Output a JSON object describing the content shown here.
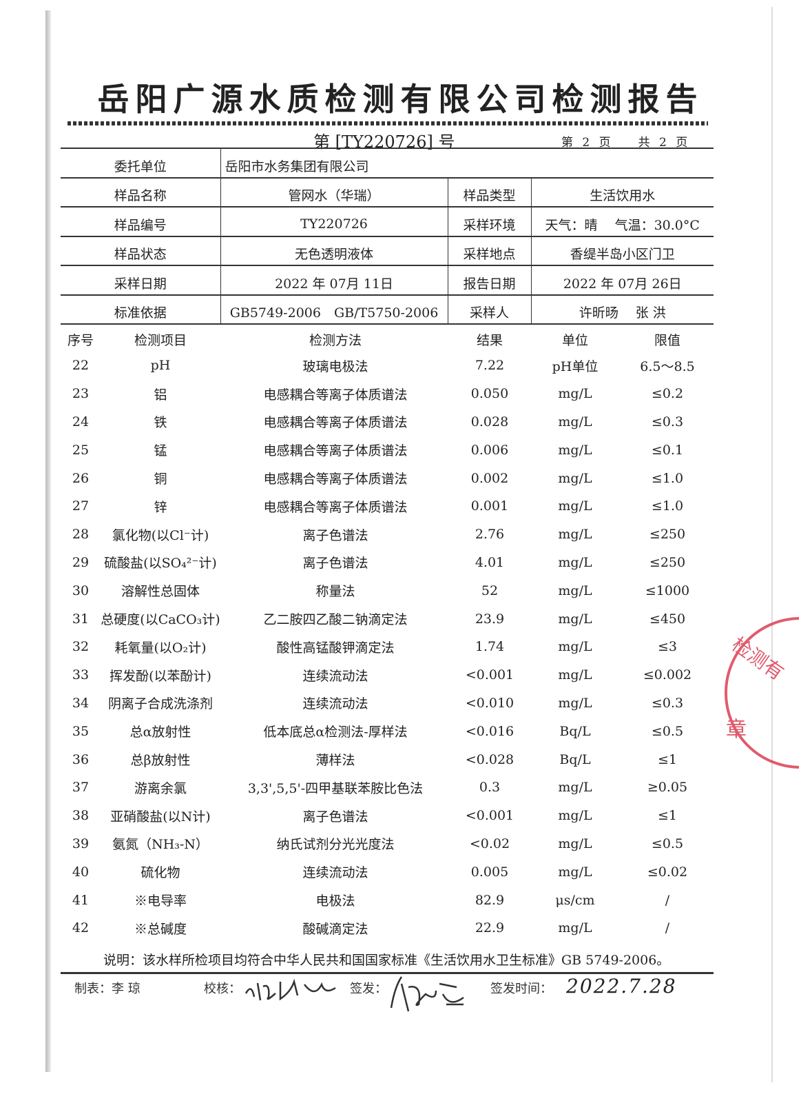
{
  "title": "岳阳广源水质检测有限公司检测报告",
  "report_no": "第 [TY220726] 号",
  "page_current": "第 2 页",
  "page_total": "共 2 页",
  "info": [
    {
      "label": "委托单位",
      "value": "岳阳市水务集团有限公司"
    },
    {
      "label": "样品名称",
      "value": "管网水（华瑞）",
      "label2": "样品类型",
      "value2": "生活饮用水"
    },
    {
      "label": "样品编号",
      "value": "TY220726",
      "label2": "采样环境",
      "value2": "天气：晴　 气温：30.0°C"
    },
    {
      "label": "样品状态",
      "value": "无色透明液体",
      "label2": "采样地点",
      "value2": "香缇半岛小区门卫"
    },
    {
      "label": "采样日期",
      "value": "2022 年 07月 11日",
      "label2": "报告日期",
      "value2": "2022 年 07月 26日"
    },
    {
      "label": "标准依据",
      "value": "GB5749-2006　GB/T5750-2006",
      "label2": "采样人",
      "value2": "许昕旸　 张 洪"
    }
  ],
  "headers": [
    "序号",
    "检测项目",
    "检测方法",
    "结果",
    "单位",
    "限值"
  ],
  "rows": [
    [
      "22",
      "pH",
      "玻璃电极法",
      "7.22",
      "pH单位",
      "6.5～8.5"
    ],
    [
      "23",
      "铝",
      "电感耦合等离子体质谱法",
      "0.050",
      "mg/L",
      "≤0.2"
    ],
    [
      "24",
      "铁",
      "电感耦合等离子体质谱法",
      "0.028",
      "mg/L",
      "≤0.3"
    ],
    [
      "25",
      "锰",
      "电感耦合等离子体质谱法",
      "0.006",
      "mg/L",
      "≤0.1"
    ],
    [
      "26",
      "铜",
      "电感耦合等离子体质谱法",
      "0.002",
      "mg/L",
      "≤1.0"
    ],
    [
      "27",
      "锌",
      "电感耦合等离子体质谱法",
      "0.001",
      "mg/L",
      "≤1.0"
    ],
    [
      "28",
      "氯化物(以Cl⁻计)",
      "离子色谱法",
      "2.76",
      "mg/L",
      "≤250"
    ],
    [
      "29",
      "硫酸盐(以SO₄²⁻计)",
      "离子色谱法",
      "4.01",
      "mg/L",
      "≤250"
    ],
    [
      "30",
      "溶解性总固体",
      "称量法",
      "52",
      "mg/L",
      "≤1000"
    ],
    [
      "31",
      "总硬度(以CaCO₃计)",
      "乙二胺四乙酸二钠滴定法",
      "23.9",
      "mg/L",
      "≤450"
    ],
    [
      "32",
      "耗氧量(以O₂计)",
      "酸性高锰酸钾滴定法",
      "1.74",
      "mg/L",
      "≤3"
    ],
    [
      "33",
      "挥发酚(以苯酚计)",
      "连续流动法",
      "<0.001",
      "mg/L",
      "≤0.002"
    ],
    [
      "34",
      "阴离子合成洗涤剂",
      "连续流动法",
      "<0.010",
      "mg/L",
      "≤0.3"
    ],
    [
      "35",
      "总α放射性",
      "低本底总α检测法-厚样法",
      "<0.016",
      "Bq/L",
      "≤0.5"
    ],
    [
      "36",
      "总β放射性",
      "薄样法",
      "<0.028",
      "Bq/L",
      "≤1"
    ],
    [
      "37",
      "游离余氯",
      "3,3',5,5'-四甲基联苯胺比色法",
      "0.3",
      "mg/L",
      "≥0.05"
    ],
    [
      "38",
      "亚硝酸盐(以N计)",
      "离子色谱法",
      "<0.001",
      "mg/L",
      "≤1"
    ],
    [
      "39",
      "氨氮（NH₃-N）",
      "纳氏试剂分光光度法",
      "<0.02",
      "mg/L",
      "≤0.5"
    ],
    [
      "40",
      "硫化物",
      "连续流动法",
      "0.005",
      "mg/L",
      "≤0.02"
    ],
    [
      "41",
      "※电导率",
      "电极法",
      "82.9",
      "μs/cm",
      "/"
    ],
    [
      "42",
      "※总碱度",
      "酸碱滴定法",
      "22.9",
      "mg/L",
      "/"
    ]
  ],
  "note": "说明：该水样所检项目均符合中华人民共和国国家标准《生活饮用水卫生标准》GB 5749-2006。",
  "footer": {
    "prepared_label": "制表：李 琼",
    "checked_label": "校核：",
    "issued_label": "签发：",
    "issue_time_label": "签发时间：",
    "issue_time_handwritten": "2022.7.28"
  },
  "stamp": {
    "text": "检测有限公司 章",
    "color": "#d9334a"
  }
}
